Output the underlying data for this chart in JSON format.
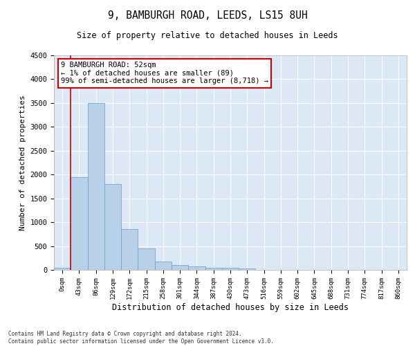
{
  "title": "9, BAMBURGH ROAD, LEEDS, LS15 8UH",
  "subtitle": "Size of property relative to detached houses in Leeds",
  "xlabel": "Distribution of detached houses by size in Leeds",
  "ylabel": "Number of detached properties",
  "bar_color": "#b8d0e8",
  "bar_edge_color": "#6699cc",
  "background_color": "#dce8f5",
  "grid_color": "#ffffff",
  "ylim": [
    0,
    4500
  ],
  "yticks": [
    0,
    500,
    1000,
    1500,
    2000,
    2500,
    3000,
    3500,
    4000,
    4500
  ],
  "categories": [
    "0sqm",
    "43sqm",
    "86sqm",
    "129sqm",
    "172sqm",
    "215sqm",
    "258sqm",
    "301sqm",
    "344sqm",
    "387sqm",
    "430sqm",
    "473sqm",
    "516sqm",
    "559sqm",
    "602sqm",
    "645sqm",
    "688sqm",
    "731sqm",
    "774sqm",
    "817sqm",
    "860sqm"
  ],
  "values": [
    50,
    1950,
    3500,
    1800,
    850,
    450,
    175,
    100,
    75,
    50,
    40,
    30,
    5,
    3,
    2,
    2,
    1,
    1,
    1,
    0,
    0
  ],
  "property_bin_index": 1,
  "annotation_text": "9 BAMBURGH ROAD: 52sqm\n← 1% of detached houses are smaller (89)\n99% of semi-detached houses are larger (8,718) →",
  "annotation_box_color": "#ffffff",
  "annotation_box_edge_color": "#cc0000",
  "property_line_color": "#cc0000",
  "footer_line1": "Contains HM Land Registry data © Crown copyright and database right 2024.",
  "footer_line2": "Contains public sector information licensed under the Open Government Licence v3.0."
}
